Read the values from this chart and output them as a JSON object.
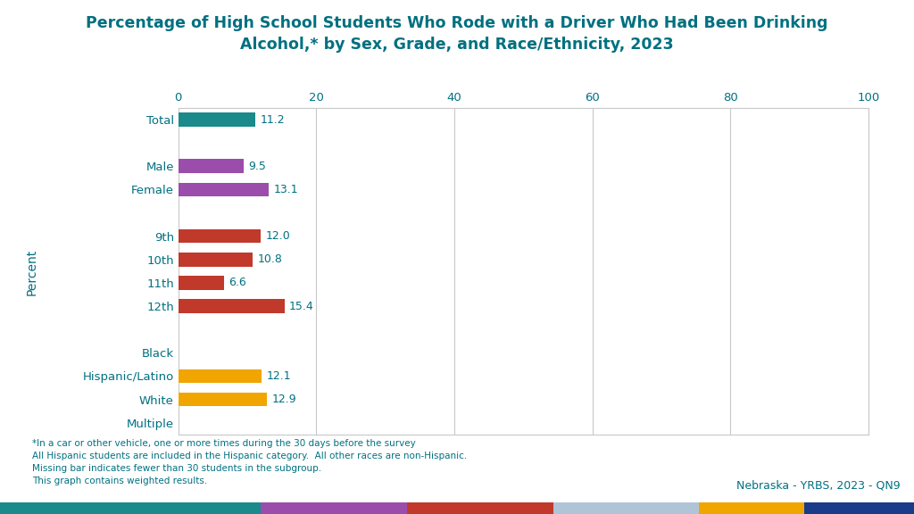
{
  "title": "Percentage of High School Students Who Rode with a Driver Who Had Been Drinking\nAlcohol,* by Sex, Grade, and Race/Ethnicity, 2023",
  "title_color": "#007080",
  "ylabel": "Percent",
  "xlim": [
    0,
    100
  ],
  "xticks": [
    0,
    20,
    40,
    60,
    80,
    100
  ],
  "categories": [
    "Total",
    "",
    "Male",
    "Female",
    "",
    "9th",
    "10th",
    "11th",
    "12th",
    "",
    "Black",
    "Hispanic/Latino",
    "White",
    "Multiple"
  ],
  "values": [
    11.2,
    null,
    9.5,
    13.1,
    null,
    12.0,
    10.8,
    6.6,
    15.4,
    null,
    null,
    12.1,
    12.9,
    null
  ],
  "bar_colors": [
    "#1a8a8a",
    null,
    "#9b4dab",
    "#9b4dab",
    null,
    "#c0392b",
    "#c0392b",
    "#c0392b",
    "#c0392b",
    null,
    null,
    "#f0a500",
    "#f0a500",
    null
  ],
  "bar_height": 0.6,
  "background_color": "#ffffff",
  "footnote_color": "#007080",
  "footnote": "*In a car or other vehicle, one or more times during the 30 days before the survey\nAll Hispanic students are included in the Hispanic category.  All other races are non-Hispanic.\nMissing bar indicates fewer than 30 students in the subgroup.\nThis graph contains weighted results.",
  "watermark": "Nebraska - YRBS, 2023 - QN9",
  "watermark_color": "#007080",
  "bottom_bar_colors": [
    "#1a8a8a",
    "#9b4dab",
    "#c0392b",
    "#b0c4d8",
    "#f0a500",
    "#1a3a8a"
  ],
  "bottom_bar_widths": [
    0.285,
    0.16,
    0.16,
    0.16,
    0.115,
    0.12
  ],
  "grid_color": "#c8c8c8",
  "label_color": "#007080",
  "value_label_color": "#007080",
  "tick_label_color": "#007080"
}
